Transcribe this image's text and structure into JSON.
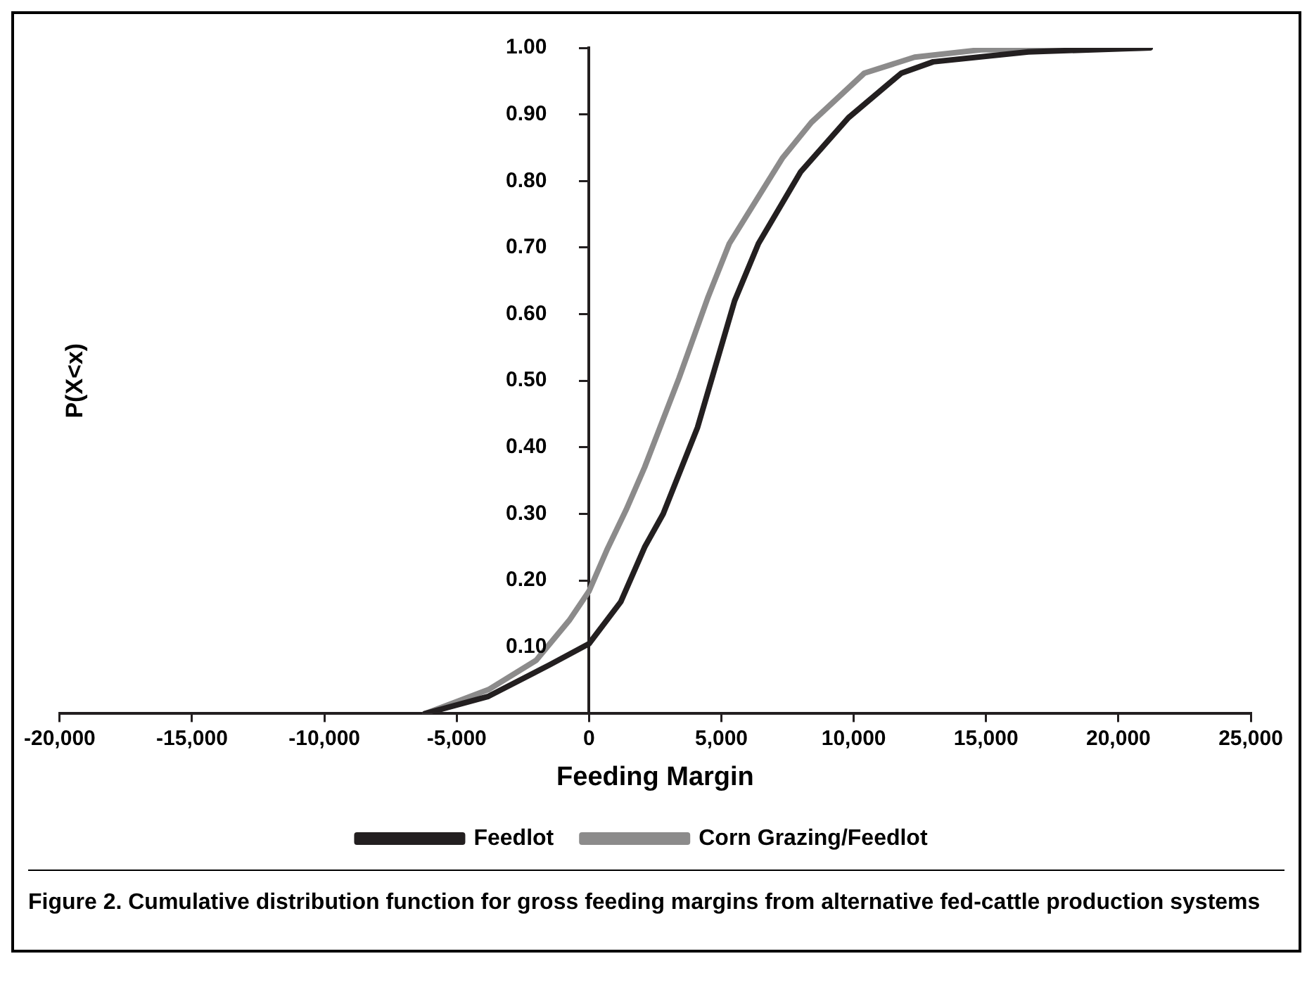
{
  "chart_data": {
    "type": "line",
    "xlabel": "Feeding Margin",
    "ylabel": "P(X<x)",
    "annotations": [
      "Figure 2. Cumulative distribution function for gross feeding margins from alternative fed-cattle production systems"
    ],
    "series": [
      {
        "name": "Feedlot",
        "color": "#231f20",
        "x": [
          -6200,
          -3800,
          -1500,
          0,
          1200,
          2100,
          2800,
          4100,
          5500,
          6400,
          8000,
          9800,
          11800,
          13000,
          16600,
          21200
        ],
        "values": [
          0,
          0.026,
          0.073,
          0.105,
          0.168,
          0.25,
          0.3,
          0.43,
          0.62,
          0.706,
          0.814,
          0.895,
          0.962,
          0.979,
          0.994,
          1.0
        ]
      },
      {
        "name": "Corn Grazing/Feedlot",
        "color": "#8c8b8b",
        "x": [
          -6200,
          -3800,
          -2000,
          -750,
          0,
          700,
          1400,
          2100,
          3400,
          4500,
          5300,
          7300,
          8400,
          10400,
          12300,
          14800,
          21200
        ],
        "values": [
          0,
          0.036,
          0.08,
          0.14,
          0.184,
          0.248,
          0.306,
          0.37,
          0.504,
          0.626,
          0.706,
          0.834,
          0.888,
          0.962,
          0.986,
          0.997,
          1.0
        ]
      }
    ],
    "xlim": [
      -20000,
      25000
    ],
    "xticks": [
      {
        "value": -20000,
        "label": "-20,000"
      },
      {
        "value": -15000,
        "label": "-15,000"
      },
      {
        "value": -10000,
        "label": "-10,000"
      },
      {
        "value": -5000,
        "label": "-5,000"
      },
      0,
      {
        "value": 5000,
        "label": "5,000"
      },
      {
        "value": 10000,
        "label": "10,000"
      },
      {
        "value": 15000,
        "label": "15,000"
      },
      {
        "value": 20000,
        "label": "20,000"
      },
      {
        "value": 25000,
        "label": "25,000"
      }
    ],
    "ylim": [
      0,
      1
    ],
    "yticks": [
      {
        "value": 0.1,
        "label": "0.10"
      },
      {
        "value": 0.2,
        "label": "0.20"
      },
      {
        "value": 0.3,
        "label": "0.30"
      },
      {
        "value": 0.4,
        "label": "0.40"
      },
      {
        "value": 0.5,
        "label": "0.50"
      },
      {
        "value": 0.6,
        "label": "0.60"
      },
      {
        "value": 0.7,
        "label": "0.70"
      },
      {
        "value": 0.8,
        "label": "0.80"
      },
      {
        "value": 0.9,
        "label": "0.90"
      },
      {
        "value": 1,
        "label": "1.00"
      }
    ],
    "grid": false,
    "legend": "bottom"
  }
}
